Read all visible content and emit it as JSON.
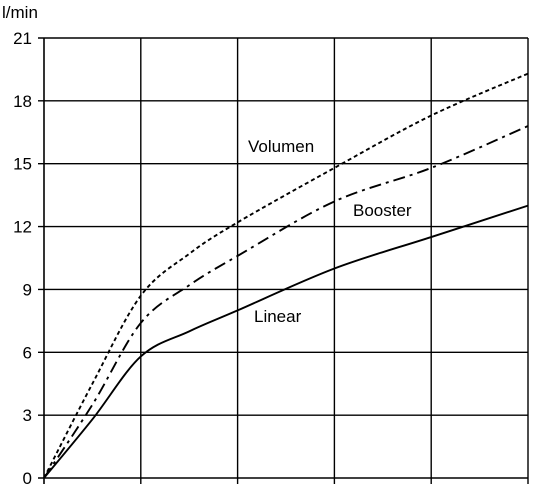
{
  "chart_data": {
    "type": "line",
    "title": "",
    "xlabel": "",
    "ylabel": "l/min",
    "ylim": [
      0,
      21
    ],
    "xlim": [
      0,
      5
    ],
    "y_ticks": [
      "0",
      "3",
      "6",
      "9",
      "12",
      "15",
      "18",
      "21"
    ],
    "x_ticks": [
      "",
      "",
      "",
      "",
      "",
      ""
    ],
    "grid": true,
    "series": [
      {
        "name": "Volumen",
        "line_style": "dotted",
        "x": [
          0,
          0.5,
          1.0,
          1.5,
          2.0,
          3.0,
          4.0,
          5.0
        ],
        "y": [
          0,
          4.5,
          8.7,
          10.7,
          12.2,
          14.8,
          17.3,
          19.3
        ]
      },
      {
        "name": "Booster",
        "line_style": "dash-dot",
        "x": [
          0,
          0.5,
          1.0,
          1.5,
          2.0,
          3.0,
          4.0,
          5.0
        ],
        "y": [
          0,
          3.5,
          7.4,
          9.2,
          10.6,
          13.2,
          14.8,
          16.8
        ]
      },
      {
        "name": "Linear",
        "line_style": "solid",
        "x": [
          0,
          0.5,
          1.0,
          1.5,
          2.0,
          3.0,
          4.0,
          5.0
        ],
        "y": [
          0,
          2.8,
          5.8,
          7.0,
          8.0,
          10.0,
          11.5,
          13.0
        ]
      }
    ]
  }
}
